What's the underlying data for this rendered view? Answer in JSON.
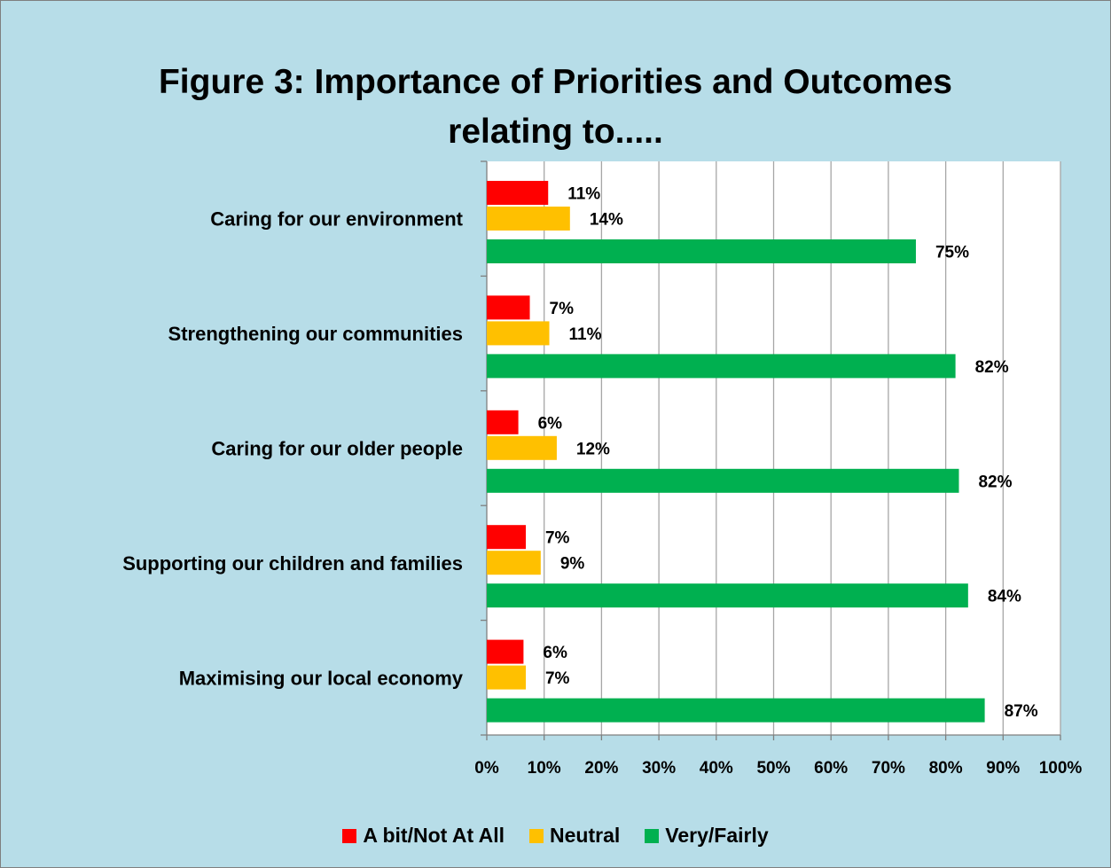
{
  "chart_data": {
    "type": "bar",
    "orientation": "horizontal",
    "title_lines": [
      "Figure 3:  Importance of Priorities and Outcomes",
      "relating to....."
    ],
    "categories": [
      "Caring for our environment",
      "Strengthening our communities",
      "Caring for our older people",
      "Supporting our children and families",
      "Maximising our local economy"
    ],
    "series": [
      {
        "name": "A bit/Not At All",
        "color": "#ff0000",
        "values": [
          11,
          7,
          6,
          7,
          6
        ],
        "plotted": [
          10.7,
          7.5,
          5.5,
          6.8,
          6.4
        ],
        "labels": [
          "11%",
          "7%",
          "6%",
          "7%",
          "6%"
        ]
      },
      {
        "name": "Neutral",
        "color": "#ffc000",
        "values": [
          14,
          11,
          12,
          9,
          7
        ],
        "plotted": [
          14.5,
          10.9,
          12.2,
          9.4,
          6.8
        ],
        "labels": [
          "14%",
          "11%",
          "12%",
          "9%",
          "7%"
        ]
      },
      {
        "name": "Very/Fairly",
        "color": "#00b050",
        "values": [
          75,
          82,
          82,
          84,
          87
        ],
        "plotted": [
          74.8,
          81.7,
          82.3,
          83.9,
          86.8
        ],
        "labels": [
          "75%",
          "82%",
          "82%",
          "84%",
          "87%"
        ]
      }
    ],
    "x_ticks": [
      "0%",
      "10%",
      "20%",
      "30%",
      "40%",
      "50%",
      "60%",
      "70%",
      "80%",
      "90%",
      "100%"
    ],
    "xlim": [
      0,
      100
    ],
    "grid": "vertical",
    "legend_position": "bottom",
    "plot_background": "#ffffff",
    "chart_background": "#b7dde8",
    "gridline_color": "#a6a6a6"
  }
}
